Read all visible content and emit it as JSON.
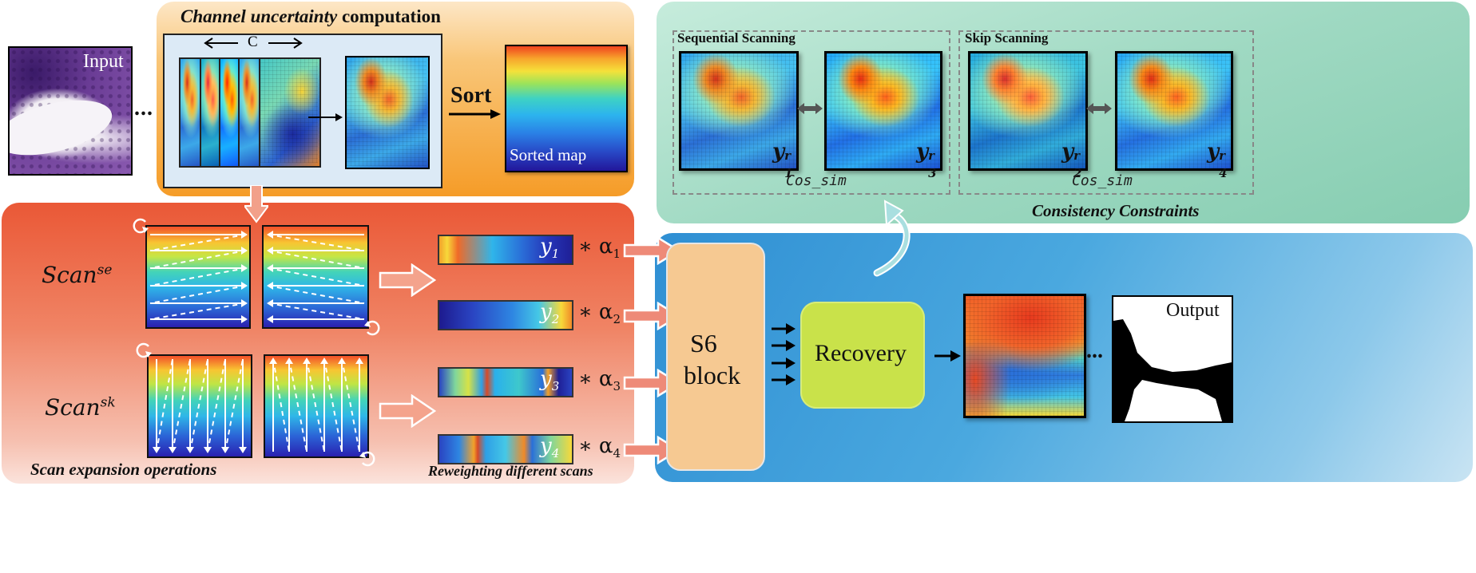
{
  "input_label": "Input",
  "output_label": "Output",
  "ellipsis": "...",
  "uncertainty": {
    "title_italic": "Channel uncertainty",
    "title_rest": " computation",
    "channel_label": "C",
    "sort_label": "Sort",
    "sorted_map_label": "Sorted map"
  },
  "consistency": {
    "sequential_title": "Sequential Scanning",
    "skip_title": "Skip Scanning",
    "cos_sim": "Cos_sim",
    "footer": "Consistency Constraints",
    "maps": [
      {
        "sym": "y",
        "sup": "r",
        "sub": "1"
      },
      {
        "sym": "y",
        "sup": "r",
        "sub": "3"
      },
      {
        "sym": "y",
        "sup": "r",
        "sub": "2"
      },
      {
        "sym": "y",
        "sup": "r",
        "sub": "4"
      }
    ]
  },
  "scan": {
    "se_base": "Scan",
    "se_sup": "se",
    "sk_base": "Scan",
    "sk_sup": "sk",
    "footer": "Scan expansion operations"
  },
  "reweight": {
    "footer": "Reweighting different scans",
    "bars": [
      {
        "y": "y",
        "sub": "1",
        "alpha": "∗ α",
        "asub": "1"
      },
      {
        "y": "y",
        "sub": "2",
        "alpha": "∗ α",
        "asub": "2"
      },
      {
        "y": "y",
        "sub": "3",
        "alpha": "∗ α",
        "asub": "3"
      },
      {
        "y": "y",
        "sub": "4",
        "alpha": "∗ α",
        "asub": "4"
      }
    ]
  },
  "s6": {
    "line1": "S6",
    "line2": "block"
  },
  "recovery_label": "Recovery",
  "colors": {
    "uncertainty_panel": "#f7a735",
    "consistency_panel": "#9ad7bf",
    "scan_panel": "#ee6a4a",
    "s6_panel": "#4aa6dc",
    "s6_block": "#f6c992",
    "recovery_block": "#c9e24a"
  }
}
